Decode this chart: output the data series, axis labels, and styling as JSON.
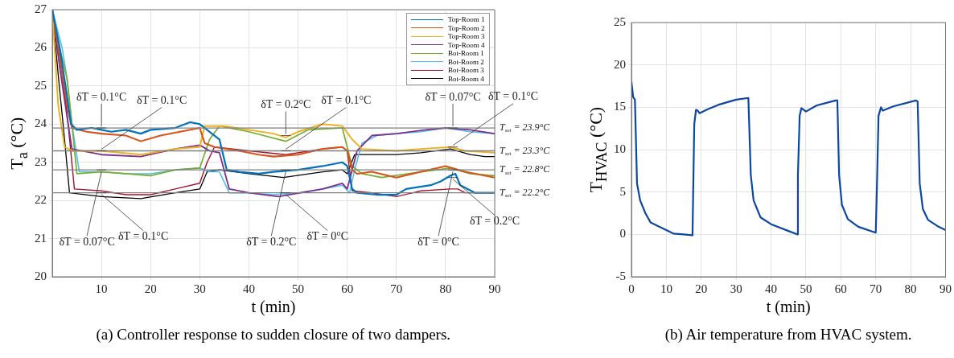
{
  "chart_data": [
    {
      "type": "line",
      "title": "(a) Controller response to sudden closure of two dampers.",
      "xlabel": "t (min)",
      "ylabel": "T$_{a}$ (°C)",
      "xlim": [
        0,
        90
      ],
      "xticks": [
        10,
        20,
        30,
        40,
        50,
        60,
        70,
        80,
        90
      ],
      "ylim": [
        20,
        27
      ],
      "yticks": [
        20,
        21,
        22,
        23,
        24,
        25,
        26,
        27
      ],
      "grid": true,
      "legend": "top right",
      "marker": "none",
      "line_style": "solid",
      "series": [
        {
          "name": "Top-Room 1",
          "color": "#0072bd",
          "x": [
            0,
            1.5,
            2.7,
            3.8,
            5,
            8,
            10,
            12,
            15,
            18,
            20,
            25,
            28,
            30,
            32,
            34,
            35.5,
            38,
            42,
            45,
            50,
            55,
            59,
            60,
            61,
            62,
            66,
            70,
            72,
            77,
            79,
            81,
            82,
            83,
            86,
            90
          ],
          "values": [
            27,
            26,
            25,
            24,
            23.85,
            23.9,
            23.85,
            23.8,
            23.85,
            23.75,
            23.85,
            23.9,
            24.05,
            24.0,
            23.8,
            23.6,
            22.8,
            22.75,
            22.7,
            22.75,
            22.8,
            22.9,
            23.0,
            22.9,
            22.3,
            22.2,
            22.15,
            22.15,
            22.3,
            22.4,
            22.5,
            22.65,
            22.7,
            22.4,
            22.2,
            22.2
          ]
        },
        {
          "name": "Top-Room 2",
          "color": "#d95319",
          "x": [
            0,
            1.5,
            3,
            4,
            7,
            10,
            15,
            18,
            22,
            26,
            30,
            31,
            33,
            38,
            42,
            45,
            50,
            55,
            59,
            60,
            61,
            62,
            65,
            70,
            75,
            80,
            84,
            90
          ],
          "values": [
            27,
            25.8,
            24.5,
            23.9,
            23.8,
            23.75,
            23.7,
            23.55,
            23.7,
            23.8,
            23.9,
            23.5,
            23.4,
            23.3,
            23.2,
            23.15,
            23.2,
            23.35,
            23.4,
            23.3,
            22.8,
            22.7,
            22.75,
            22.6,
            22.75,
            22.9,
            22.75,
            22.6
          ]
        },
        {
          "name": "Top-Room 3",
          "color": "#edb120",
          "x": [
            0,
            1.2,
            2.5,
            4,
            10,
            18,
            25,
            30,
            31,
            35,
            40,
            45,
            47.5,
            50,
            55,
            59,
            61,
            63,
            70,
            75,
            81,
            84,
            90
          ],
          "values": [
            27,
            24.5,
            23.4,
            23.3,
            23.3,
            23.2,
            23.35,
            23.4,
            23.95,
            23.95,
            23.85,
            23.75,
            23.65,
            23.8,
            24.0,
            23.95,
            23.6,
            23.35,
            23.3,
            23.35,
            23.4,
            23.3,
            23.25
          ]
        },
        {
          "name": "Top-Room 4",
          "color": "#7e2f8e",
          "x": [
            0,
            1.5,
            3,
            4,
            10,
            18,
            25,
            30,
            32,
            34,
            36,
            40,
            46,
            55,
            59,
            60,
            62,
            65,
            70,
            76,
            80,
            85,
            90
          ],
          "values": [
            27,
            25.5,
            24.2,
            23.35,
            23.2,
            23.15,
            23.35,
            23.45,
            23.3,
            23.25,
            22.3,
            22.2,
            22.1,
            22.3,
            22.45,
            22.3,
            23.3,
            23.7,
            23.75,
            23.85,
            23.9,
            23.85,
            23.75
          ]
        },
        {
          "name": "Bot-Room 1",
          "color": "#77ac30",
          "x": [
            0,
            1.5,
            3,
            4,
            5,
            10,
            15,
            20,
            25,
            30,
            32,
            34,
            40,
            47.5,
            52,
            59,
            61,
            63,
            67,
            75,
            81,
            85,
            90
          ],
          "values": [
            27,
            26,
            25.2,
            24,
            22.7,
            22.75,
            22.7,
            22.65,
            22.8,
            22.85,
            23.6,
            23.95,
            23.8,
            23.55,
            23.85,
            23.9,
            22.9,
            22.7,
            22.6,
            22.75,
            22.85,
            22.7,
            22.65
          ]
        },
        {
          "name": "Bot-Room 2",
          "color": "#4dbeee",
          "x": [
            0,
            2,
            3,
            4,
            5.5,
            10,
            15,
            20,
            25,
            30,
            32,
            34,
            36,
            40,
            45,
            50,
            55,
            59,
            60.5,
            61.5,
            63,
            66,
            70,
            75,
            80,
            85,
            90
          ],
          "values": [
            27,
            26,
            25.2,
            24,
            22.75,
            22.75,
            22.7,
            22.7,
            22.8,
            22.85,
            22.75,
            22.75,
            22.2,
            22.2,
            22.15,
            22.2,
            22.3,
            22.4,
            22.2,
            22.8,
            23.5,
            23.7,
            23.75,
            23.8,
            23.9,
            23.8,
            23.75
          ]
        },
        {
          "name": "Bot-Room 3",
          "color": "#a2142f",
          "x": [
            0,
            1.5,
            3,
            4.5,
            10,
            15,
            20,
            25,
            30,
            31.5,
            33,
            40,
            47.5,
            55,
            59,
            60,
            61,
            65,
            70,
            75,
            81,
            82.5,
            84,
            90
          ],
          "values": [
            27,
            25.8,
            24.3,
            22.3,
            22.25,
            22.15,
            22.15,
            22.3,
            22.45,
            23.0,
            23.4,
            23.3,
            23.2,
            23.35,
            23.4,
            23.3,
            22.25,
            22.2,
            22.1,
            22.25,
            22.3,
            22.3,
            22.2,
            22.2
          ]
        },
        {
          "name": "Bot-Room 4",
          "color": "#000000",
          "x": [
            0,
            1.2,
            2.5,
            3.5,
            10,
            18,
            25,
            30,
            31.5,
            34,
            40,
            47,
            55,
            59,
            60,
            61.5,
            65,
            70,
            75,
            81,
            85,
            88,
            90
          ],
          "values": [
            27,
            25.3,
            23.6,
            22.2,
            22.1,
            22.05,
            22.2,
            22.3,
            22.75,
            22.8,
            22.7,
            22.6,
            22.75,
            22.8,
            22.7,
            23.2,
            23.2,
            23.2,
            23.25,
            23.35,
            23.2,
            23.15,
            23.15
          ]
        }
      ],
      "ref_lines": [
        {
          "axis": "y",
          "value": 23.9,
          "label": "T$_{set}$ = 23.9°C",
          "color": "#808080"
        },
        {
          "axis": "y",
          "value": 23.3,
          "label": "T$_{set}$ = 23.3°C",
          "color": "#808080"
        },
        {
          "axis": "y",
          "value": 22.8,
          "label": "T$_{set}$ = 22.8°C",
          "color": "#808080"
        },
        {
          "axis": "y",
          "value": 22.2,
          "label": "T$_{set}$ = 22.2°C",
          "color": "#808080"
        }
      ],
      "annotations": [
        {
          "text": "δT = 0.1°C",
          "x": 10,
          "y": 23.9
        },
        {
          "text": "δT = 0.1°C",
          "x": 10,
          "y": 23.3
        },
        {
          "text": "δT = 0.07°C",
          "x": 10,
          "y": 22.8
        },
        {
          "text": "δT = 0.1°C",
          "x": 10,
          "y": 22.2
        },
        {
          "text": "δT = 0.2°C",
          "x": 47.5,
          "y": 23.7
        },
        {
          "text": "δT = 0.1°C",
          "x": 47.5,
          "y": 23.3
        },
        {
          "text": "δT = 0.2°C",
          "x": 47.5,
          "y": 22.8
        },
        {
          "text": "δT = 0°C",
          "x": 47.5,
          "y": 22.2
        },
        {
          "text": "δT = 0.07°C",
          "x": 81.5,
          "y": 23.9
        },
        {
          "text": "δT = 0.1°C",
          "x": 81.5,
          "y": 23.4
        },
        {
          "text": "δT = 0°C",
          "x": 81.5,
          "y": 22.8
        },
        {
          "text": "δT = 0.2°C",
          "x": 81.5,
          "y": 22.6
        }
      ]
    },
    {
      "type": "line",
      "title": "(b) Air temperature from HVAC system.",
      "xlabel": "t (min)",
      "ylabel": "T$_{HVAC}$ (°C)",
      "xlim": [
        0,
        90
      ],
      "xticks": [
        0,
        10,
        20,
        30,
        40,
        50,
        60,
        70,
        80,
        90
      ],
      "ylim": [
        -5,
        25
      ],
      "yticks": [
        -5,
        0,
        5,
        10,
        15,
        20,
        25
      ],
      "grid": true,
      "marker": "none",
      "line_style": "solid",
      "series": [
        {
          "color": "#0d47a1",
          "x": [
            0,
            0.5,
            1,
            1.3,
            1.6,
            2.5,
            4,
            5.5,
            7,
            10,
            12,
            15,
            17.3,
            17.5,
            18,
            18.5,
            19,
            19.5,
            22,
            25,
            30,
            33.5,
            34.2,
            35,
            37,
            40,
            45,
            47.5,
            47.7,
            48.2,
            48.7,
            50,
            53,
            58.5,
            59,
            59.5,
            60.3,
            62,
            65,
            70,
            70.3,
            70.8,
            71.5,
            72,
            75,
            81.5,
            82,
            82.6,
            83.5,
            85,
            88,
            90
          ],
          "values": [
            18,
            16.2,
            15.9,
            11,
            6,
            4,
            2.5,
            1.4,
            1.1,
            0.5,
            0.1,
            0,
            -0.1,
            0,
            13,
            14.7,
            14.6,
            14.3,
            14.8,
            15.3,
            15.9,
            16.1,
            7,
            4,
            2,
            1.2,
            0.4,
            0,
            7,
            14,
            14.9,
            14.5,
            15.2,
            15.8,
            15.8,
            7,
            3.5,
            1.8,
            0.9,
            0.2,
            5,
            14,
            15,
            14.6,
            15.1,
            15.8,
            15.7,
            6,
            3,
            1.7,
            0.9,
            0.5
          ]
        }
      ]
    }
  ]
}
